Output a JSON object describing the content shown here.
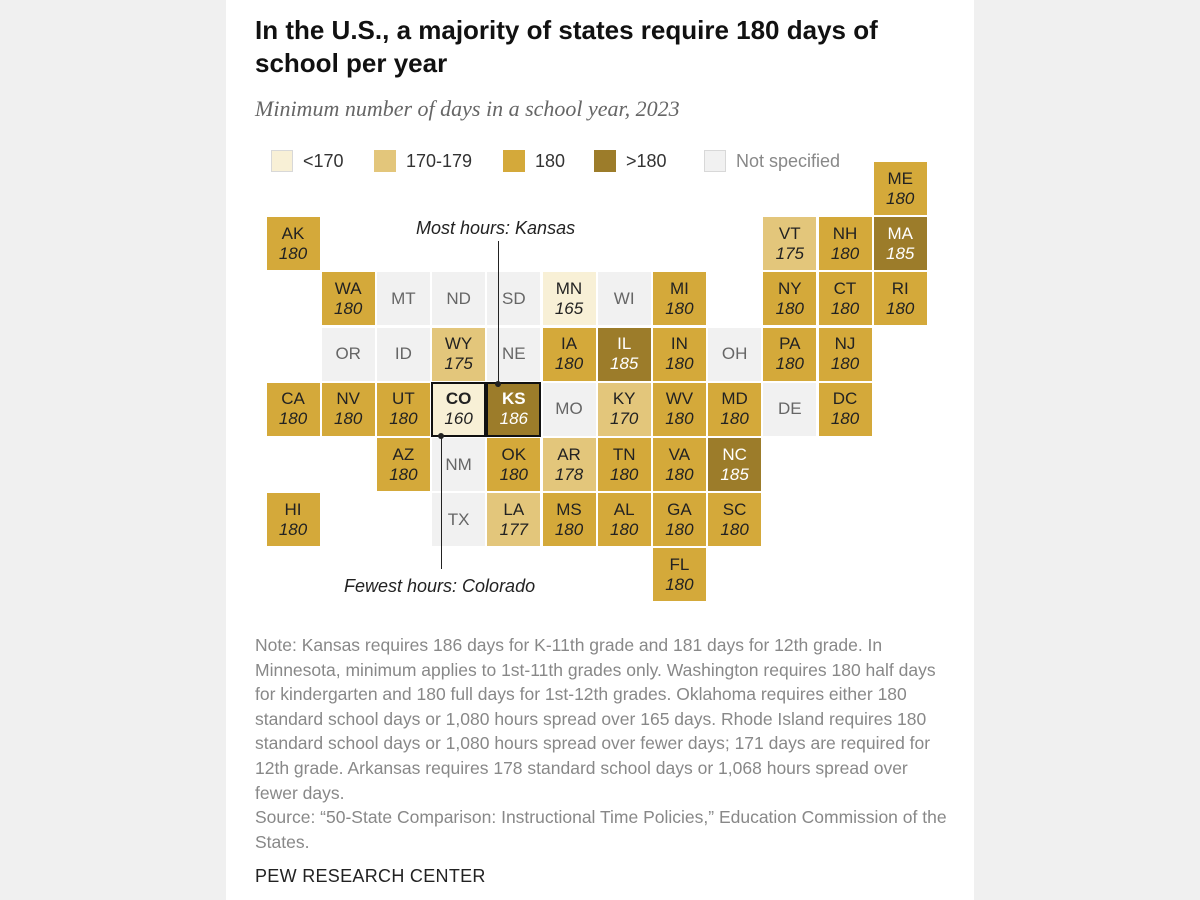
{
  "title": "In the U.S., a majority of states require 180 days of school per year",
  "subtitle": "Minimum number of days in a school year, 2023",
  "legend": [
    {
      "label": "<170",
      "key": "lt170",
      "color": "#f8f0d6"
    },
    {
      "label": "170-179",
      "key": "c170",
      "color": "#e3c67b"
    },
    {
      "label": "180",
      "key": "c180",
      "color": "#d4a93a"
    },
    {
      "label": ">180",
      "key": "gt180",
      "color": "#9c7c2a"
    },
    {
      "label": "Not specified",
      "key": "ns",
      "color": "#f1f1f1"
    }
  ],
  "annotations": {
    "most": "Most hours: Kansas",
    "fewest": "Fewest hours: Colorado"
  },
  "states": [
    {
      "abbr": "ME",
      "value": "180",
      "col": 11,
      "row": 0
    },
    {
      "abbr": "AK",
      "value": "180",
      "col": 0,
      "row": 1
    },
    {
      "abbr": "VT",
      "value": "175",
      "col": 9,
      "row": 1
    },
    {
      "abbr": "NH",
      "value": "180",
      "col": 10,
      "row": 1
    },
    {
      "abbr": "MA",
      "value": "185",
      "col": 11,
      "row": 1
    },
    {
      "abbr": "WA",
      "value": "180",
      "col": 1,
      "row": 2
    },
    {
      "abbr": "MT",
      "value": "",
      "col": 2,
      "row": 2
    },
    {
      "abbr": "ND",
      "value": "",
      "col": 3,
      "row": 2
    },
    {
      "abbr": "SD",
      "value": "",
      "col": 4,
      "row": 2
    },
    {
      "abbr": "MN",
      "value": "165",
      "col": 5,
      "row": 2
    },
    {
      "abbr": "WI",
      "value": "",
      "col": 6,
      "row": 2
    },
    {
      "abbr": "MI",
      "value": "180",
      "col": 7,
      "row": 2
    },
    {
      "abbr": "NY",
      "value": "180",
      "col": 9,
      "row": 2
    },
    {
      "abbr": "CT",
      "value": "180",
      "col": 10,
      "row": 2
    },
    {
      "abbr": "RI",
      "value": "180",
      "col": 11,
      "row": 2
    },
    {
      "abbr": "OR",
      "value": "",
      "col": 1,
      "row": 3
    },
    {
      "abbr": "ID",
      "value": "",
      "col": 2,
      "row": 3
    },
    {
      "abbr": "WY",
      "value": "175",
      "col": 3,
      "row": 3
    },
    {
      "abbr": "NE",
      "value": "",
      "col": 4,
      "row": 3
    },
    {
      "abbr": "IA",
      "value": "180",
      "col": 5,
      "row": 3
    },
    {
      "abbr": "IL",
      "value": "185",
      "col": 6,
      "row": 3
    },
    {
      "abbr": "IN",
      "value": "180",
      "col": 7,
      "row": 3
    },
    {
      "abbr": "OH",
      "value": "",
      "col": 8,
      "row": 3
    },
    {
      "abbr": "PA",
      "value": "180",
      "col": 9,
      "row": 3
    },
    {
      "abbr": "NJ",
      "value": "180",
      "col": 10,
      "row": 3
    },
    {
      "abbr": "CA",
      "value": "180",
      "col": 0,
      "row": 4
    },
    {
      "abbr": "NV",
      "value": "180",
      "col": 1,
      "row": 4
    },
    {
      "abbr": "UT",
      "value": "180",
      "col": 2,
      "row": 4
    },
    {
      "abbr": "CO",
      "value": "160",
      "col": 3,
      "row": 4,
      "highlight": true
    },
    {
      "abbr": "KS",
      "value": "186",
      "col": 4,
      "row": 4,
      "highlight": true
    },
    {
      "abbr": "MO",
      "value": "",
      "col": 5,
      "row": 4
    },
    {
      "abbr": "KY",
      "value": "170",
      "col": 6,
      "row": 4
    },
    {
      "abbr": "WV",
      "value": "180",
      "col": 7,
      "row": 4
    },
    {
      "abbr": "MD",
      "value": "180",
      "col": 8,
      "row": 4
    },
    {
      "abbr": "DE",
      "value": "",
      "col": 9,
      "row": 4
    },
    {
      "abbr": "DC",
      "value": "180",
      "col": 10,
      "row": 4
    },
    {
      "abbr": "AZ",
      "value": "180",
      "col": 2,
      "row": 5
    },
    {
      "abbr": "NM",
      "value": "",
      "col": 3,
      "row": 5
    },
    {
      "abbr": "OK",
      "value": "180",
      "col": 4,
      "row": 5
    },
    {
      "abbr": "AR",
      "value": "178",
      "col": 5,
      "row": 5
    },
    {
      "abbr": "TN",
      "value": "180",
      "col": 6,
      "row": 5
    },
    {
      "abbr": "VA",
      "value": "180",
      "col": 7,
      "row": 5
    },
    {
      "abbr": "NC",
      "value": "185",
      "col": 8,
      "row": 5
    },
    {
      "abbr": "HI",
      "value": "180",
      "col": 0,
      "row": 6
    },
    {
      "abbr": "TX",
      "value": "",
      "col": 3,
      "row": 6
    },
    {
      "abbr": "LA",
      "value": "177",
      "col": 4,
      "row": 6
    },
    {
      "abbr": "MS",
      "value": "180",
      "col": 5,
      "row": 6
    },
    {
      "abbr": "AL",
      "value": "180",
      "col": 6,
      "row": 6
    },
    {
      "abbr": "GA",
      "value": "180",
      "col": 7,
      "row": 6
    },
    {
      "abbr": "SC",
      "value": "180",
      "col": 8,
      "row": 6
    },
    {
      "abbr": "FL",
      "value": "180",
      "col": 7,
      "row": 7
    }
  ],
  "note": "Note: Kansas requires 186 days for K-11th grade and 181 days for 12th grade. In Minnesota, minimum applies to 1st-11th grades only. Washington requires 180 half days for kindergarten and 180 full days for 1st-12th grades. Oklahoma requires either 180 standard school days or 1,080 hours spread over 165 days. Rhode Island requires 180 standard school days or 1,080 hours spread over fewer days; 171 days are required for 12th grade. Arkansas requires 178 standard school days or 1,068 hours spread over fewer days.",
  "source": "Source: “50-State Comparison: Instructional Time Policies,” Education Commission of the States.",
  "brand": "PEW RESEARCH CENTER"
}
